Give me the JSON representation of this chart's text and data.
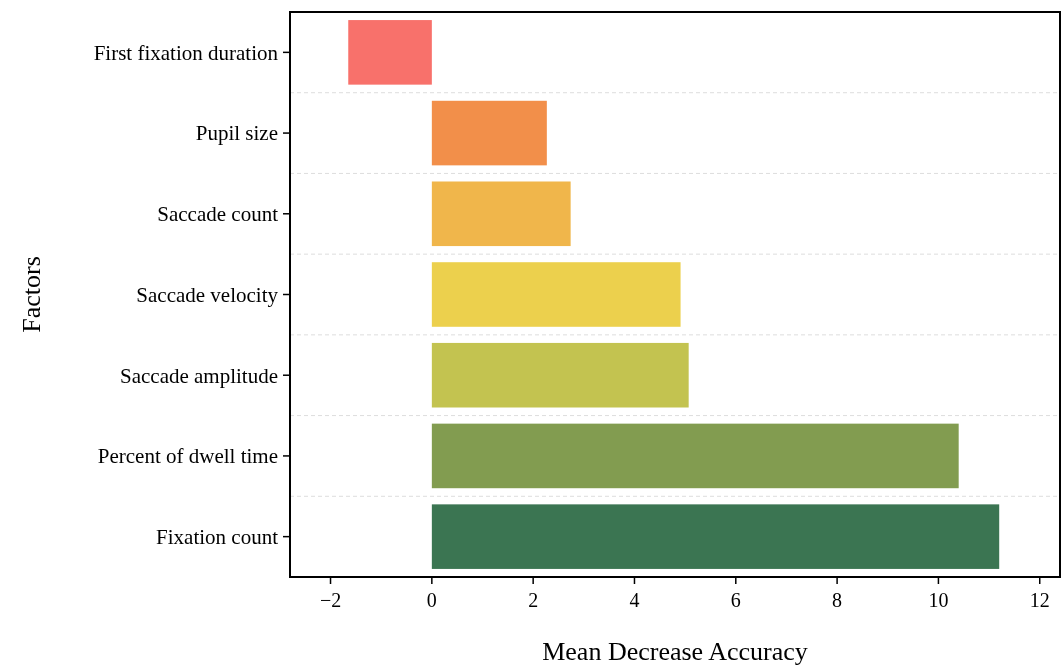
{
  "chart_data": {
    "type": "bar",
    "orientation": "horizontal",
    "xlabel": "Mean Decrease Accuracy",
    "ylabel": "Factors",
    "categories": [
      "First fixation duration",
      "Pupil size",
      "Saccade count",
      "Saccade velocity",
      "Saccade amplitude",
      "Percent of dwell time",
      "Fixation count"
    ],
    "values": [
      -1.65,
      2.27,
      2.74,
      4.91,
      5.07,
      10.4,
      11.2
    ],
    "colors": [
      "#f8716b",
      "#f28f4a",
      "#f0b64b",
      "#ecd04d",
      "#c3c350",
      "#829c50",
      "#3b7552"
    ],
    "xlim": [
      -2.8,
      12.4
    ],
    "xticks": [
      {
        "value": -2,
        "label": "−2"
      },
      0,
      2,
      4,
      6,
      8,
      10,
      12
    ],
    "grid": "y"
  }
}
